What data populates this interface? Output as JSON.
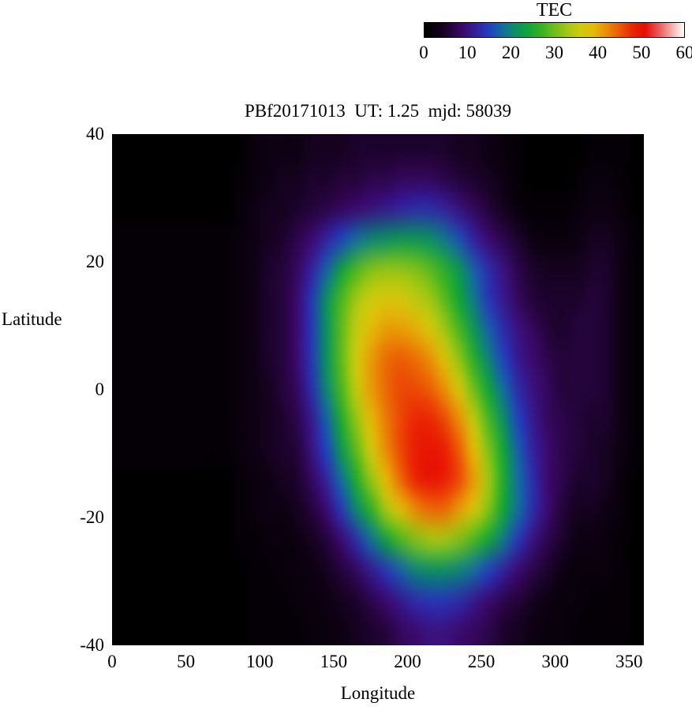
{
  "chart_data": {
    "type": "heatmap",
    "title": "PBf20171013  UT: 1.25  mjd: 58039",
    "xlabel": "Longitude",
    "ylabel": "Latitude",
    "colorbar_label": "TEC",
    "x_range": [
      0,
      360
    ],
    "y_range": [
      -40,
      40
    ],
    "value_range": [
      0,
      60
    ],
    "x_ticks": {
      "values": [
        0,
        50,
        100,
        150,
        200,
        250,
        300,
        350
      ],
      "labels": [
        "0",
        "50",
        "100",
        "150",
        "200",
        "250",
        "300",
        "350"
      ]
    },
    "y_ticks": {
      "values": [
        40,
        20,
        0,
        -20,
        -40
      ],
      "labels": [
        "40",
        "20",
        "0",
        "-20",
        "-40"
      ]
    },
    "colorbar_ticks": {
      "values": [
        0,
        10,
        20,
        30,
        40,
        50,
        60
      ],
      "labels": [
        "0",
        "10",
        "20",
        "30",
        "40",
        "50",
        "60"
      ]
    },
    "colormap": [
      {
        "v": 0,
        "color": "#000000"
      },
      {
        "v": 3,
        "color": "#0d0112"
      },
      {
        "v": 6,
        "color": "#24043a"
      },
      {
        "v": 9,
        "color": "#3c0a6e"
      },
      {
        "v": 12,
        "color": "#35219e"
      },
      {
        "v": 15,
        "color": "#2141c0"
      },
      {
        "v": 18,
        "color": "#136da0"
      },
      {
        "v": 21,
        "color": "#0c8f62"
      },
      {
        "v": 24,
        "color": "#12a437"
      },
      {
        "v": 27,
        "color": "#35b224"
      },
      {
        "v": 30,
        "color": "#6fbe1a"
      },
      {
        "v": 33,
        "color": "#a3c713"
      },
      {
        "v": 36,
        "color": "#cfcb0d"
      },
      {
        "v": 39,
        "color": "#e3bb08"
      },
      {
        "v": 42,
        "color": "#e98e06"
      },
      {
        "v": 45,
        "color": "#ec5b05"
      },
      {
        "v": 48,
        "color": "#ea2604"
      },
      {
        "v": 51,
        "color": "#e60d04"
      },
      {
        "v": 54,
        "color": "#ec5555"
      },
      {
        "v": 57,
        "color": "#f5a8a8"
      },
      {
        "v": 60,
        "color": "#ffffff"
      }
    ],
    "lon": [
      0,
      10,
      20,
      30,
      40,
      50,
      60,
      70,
      80,
      90,
      100,
      110,
      120,
      130,
      140,
      150,
      160,
      170,
      180,
      190,
      200,
      210,
      220,
      230,
      240,
      250,
      260,
      270,
      280,
      290,
      300,
      310,
      320,
      330,
      340,
      350
    ],
    "lat": [
      40,
      35,
      30,
      25,
      20,
      15,
      10,
      5,
      0,
      -5,
      -10,
      -15,
      -20,
      -25,
      -30,
      -35,
      -40
    ],
    "values": [
      [
        0,
        0,
        0,
        0,
        0,
        0,
        0,
        0,
        0,
        2,
        3,
        3,
        3,
        4,
        4,
        4,
        5,
        5,
        5,
        5,
        5,
        5,
        5,
        4,
        4,
        3,
        2,
        1,
        0,
        0,
        0,
        0,
        1,
        1,
        1,
        0
      ],
      [
        0,
        0,
        0,
        0,
        0,
        0,
        0,
        0,
        1,
        2,
        3,
        4,
        4,
        5,
        5,
        6,
        6,
        7,
        7,
        8,
        8,
        8,
        7,
        6,
        5,
        4,
        3,
        1,
        0,
        0,
        0,
        1,
        2,
        2,
        1,
        0
      ],
      [
        0,
        0,
        0,
        0,
        0,
        0,
        0,
        0,
        1,
        3,
        4,
        4,
        5,
        6,
        7,
        8,
        9,
        10,
        11,
        12,
        13,
        13,
        12,
        10,
        8,
        6,
        4,
        2,
        1,
        1,
        1,
        2,
        3,
        3,
        2,
        0
      ],
      [
        1,
        1,
        1,
        1,
        1,
        1,
        1,
        1,
        2,
        3,
        4,
        5,
        7,
        9,
        12,
        15,
        18,
        20,
        21,
        22,
        22,
        21,
        19,
        16,
        12,
        9,
        7,
        5,
        3,
        2,
        2,
        3,
        4,
        4,
        3,
        1
      ],
      [
        1,
        1,
        1,
        1,
        1,
        1,
        1,
        1,
        2,
        3,
        5,
        6,
        8,
        12,
        17,
        23,
        28,
        31,
        32,
        32,
        31,
        29,
        26,
        22,
        17,
        13,
        10,
        7,
        5,
        4,
        4,
        4,
        5,
        5,
        3,
        1
      ],
      [
        1,
        1,
        1,
        1,
        1,
        1,
        1,
        1,
        2,
        3,
        5,
        6,
        9,
        14,
        21,
        28,
        33,
        36,
        37,
        37,
        35,
        33,
        29,
        24,
        19,
        14,
        11,
        8,
        6,
        5,
        5,
        5,
        6,
        5,
        3,
        1
      ],
      [
        1,
        1,
        1,
        1,
        1,
        1,
        1,
        1,
        2,
        3,
        5,
        6,
        9,
        14,
        21,
        29,
        35,
        39,
        41,
        41,
        40,
        37,
        33,
        28,
        22,
        17,
        13,
        10,
        8,
        6,
        5,
        6,
        6,
        5,
        3,
        1
      ],
      [
        1,
        1,
        1,
        1,
        1,
        1,
        1,
        1,
        2,
        3,
        5,
        6,
        9,
        14,
        21,
        29,
        36,
        41,
        44,
        45,
        44,
        42,
        38,
        32,
        26,
        20,
        15,
        11,
        9,
        7,
        6,
        6,
        6,
        5,
        3,
        1
      ],
      [
        1,
        1,
        1,
        1,
        1,
        1,
        1,
        1,
        2,
        3,
        4,
        6,
        8,
        13,
        20,
        28,
        35,
        41,
        44,
        46,
        46,
        45,
        42,
        37,
        30,
        24,
        18,
        13,
        10,
        8,
        6,
        6,
        6,
        5,
        3,
        1
      ],
      [
        1,
        1,
        1,
        1,
        1,
        1,
        1,
        1,
        2,
        3,
        4,
        5,
        7,
        11,
        17,
        25,
        32,
        39,
        43,
        46,
        48,
        48,
        46,
        42,
        35,
        28,
        21,
        15,
        11,
        8,
        7,
        6,
        5,
        5,
        3,
        1
      ],
      [
        1,
        1,
        1,
        1,
        1,
        1,
        1,
        1,
        2,
        3,
        4,
        5,
        6,
        10,
        15,
        22,
        29,
        36,
        42,
        46,
        49,
        50,
        49,
        45,
        39,
        31,
        24,
        17,
        12,
        9,
        7,
        6,
        5,
        4,
        3,
        1
      ],
      [
        0,
        0,
        0,
        0,
        0,
        0,
        0,
        0,
        1,
        2,
        3,
        4,
        5,
        8,
        12,
        18,
        25,
        32,
        39,
        44,
        48,
        50,
        49,
        46,
        41,
        33,
        25,
        18,
        13,
        9,
        7,
        5,
        5,
        4,
        2,
        0
      ],
      [
        0,
        0,
        0,
        0,
        0,
        0,
        0,
        0,
        1,
        2,
        3,
        3,
        4,
        6,
        9,
        14,
        20,
        26,
        33,
        38,
        42,
        44,
        44,
        41,
        37,
        31,
        24,
        18,
        13,
        9,
        6,
        4,
        4,
        3,
        2,
        0
      ],
      [
        0,
        0,
        0,
        0,
        0,
        0,
        0,
        0,
        1,
        1,
        2,
        2,
        3,
        4,
        6,
        9,
        13,
        18,
        23,
        28,
        31,
        33,
        33,
        31,
        28,
        24,
        19,
        14,
        10,
        7,
        5,
        3,
        3,
        2,
        1,
        0
      ],
      [
        0,
        0,
        0,
        0,
        0,
        0,
        0,
        0,
        0,
        1,
        1,
        2,
        2,
        3,
        4,
        6,
        8,
        11,
        14,
        17,
        20,
        21,
        21,
        20,
        18,
        15,
        12,
        9,
        7,
        5,
        3,
        2,
        2,
        2,
        1,
        0
      ],
      [
        0,
        0,
        0,
        0,
        0,
        0,
        0,
        0,
        0,
        1,
        1,
        1,
        2,
        2,
        3,
        4,
        5,
        7,
        9,
        11,
        13,
        14,
        14,
        13,
        11,
        9,
        7,
        6,
        4,
        3,
        2,
        2,
        1,
        1,
        1,
        0
      ],
      [
        0,
        0,
        0,
        0,
        0,
        0,
        0,
        0,
        0,
        1,
        1,
        1,
        1,
        2,
        2,
        3,
        4,
        5,
        6,
        8,
        9,
        10,
        10,
        9,
        8,
        7,
        5,
        4,
        3,
        2,
        2,
        1,
        1,
        1,
        1,
        0
      ]
    ]
  }
}
